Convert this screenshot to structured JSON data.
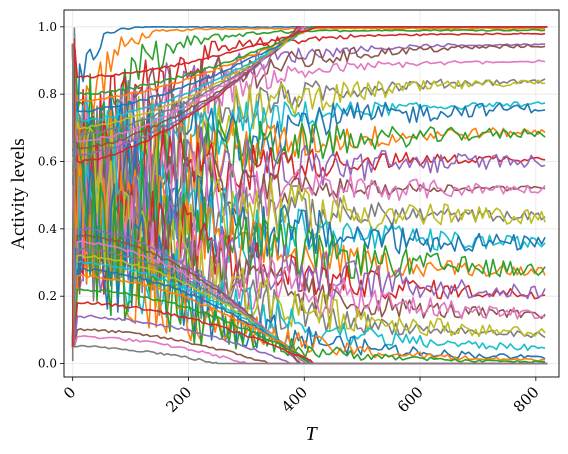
{
  "chart_data": {
    "type": "line",
    "xlabel": "T",
    "ylabel": "Activity levels",
    "xlim": [
      -15,
      840
    ],
    "ylim": [
      -0.04,
      1.05
    ],
    "xticks": [
      0,
      200,
      400,
      600,
      800
    ],
    "xtick_labels": [
      "0",
      "200",
      "400",
      "600",
      "800"
    ],
    "yticks": [
      0.0,
      0.2,
      0.4,
      0.6,
      0.8,
      1.0
    ],
    "ytick_labels": [
      "0.0",
      "0.2",
      "0.4",
      "0.6",
      "0.8",
      "1.0"
    ],
    "grid": true,
    "legend": "none",
    "x_max": 820,
    "colors": [
      "#1f77b4",
      "#ff7f0e",
      "#2ca02c",
      "#d62728",
      "#9467bd",
      "#8c564b",
      "#e377c2",
      "#7f7f7f",
      "#bcbd22",
      "#17becf"
    ],
    "plateau_series": [
      {
        "final": 1.0,
        "rise": 20
      },
      {
        "final": 0.995,
        "rise": 40
      },
      {
        "final": 0.99,
        "rise": 80
      },
      {
        "final": 0.98,
        "rise": 120
      },
      {
        "final": 0.95,
        "rise": 150
      },
      {
        "final": 0.948,
        "rise": 180
      },
      {
        "final": 0.9,
        "rise": 160
      },
      {
        "final": 0.845,
        "rise": 200
      },
      {
        "final": 0.843,
        "rise": 220
      },
      {
        "final": 0.775,
        "rise": 200
      },
      {
        "final": 0.772,
        "rise": 260
      },
      {
        "final": 0.695,
        "rise": 240
      },
      {
        "final": 0.692,
        "rise": 250
      },
      {
        "final": 0.612,
        "rise": 220
      },
      {
        "final": 0.608,
        "rise": 280
      },
      {
        "final": 0.522,
        "rise": 200
      },
      {
        "final": 0.52,
        "rise": 260
      },
      {
        "final": 0.435,
        "rise": 250
      },
      {
        "final": 0.432,
        "rise": 300
      },
      {
        "final": 0.35,
        "rise": 280
      },
      {
        "final": 0.346,
        "rise": 300
      },
      {
        "final": 0.265,
        "rise": 260
      },
      {
        "final": 0.262,
        "rise": 300
      },
      {
        "final": 0.192,
        "rise": 260
      },
      {
        "final": 0.19,
        "rise": 300
      },
      {
        "final": 0.128,
        "rise": 250
      },
      {
        "final": 0.125,
        "rise": 280
      },
      {
        "final": 0.075,
        "rise": 220
      },
      {
        "final": 0.072,
        "rise": 260
      },
      {
        "final": 0.035,
        "rise": 220
      },
      {
        "final": 0.01,
        "rise": 200
      },
      {
        "final": 0.005,
        "rise": 180
      },
      {
        "final": 0.002,
        "rise": 160
      }
    ],
    "rising_series": [
      {
        "start": 0.6,
        "t_end": 390
      },
      {
        "start": 0.62,
        "t_end": 395
      },
      {
        "start": 0.64,
        "t_end": 400
      },
      {
        "start": 0.66,
        "t_end": 402
      },
      {
        "start": 0.68,
        "t_end": 405
      },
      {
        "start": 0.7,
        "t_end": 408
      },
      {
        "start": 0.72,
        "t_end": 410
      },
      {
        "start": 0.75,
        "t_end": 412
      },
      {
        "start": 0.78,
        "t_end": 415
      },
      {
        "start": 0.8,
        "t_end": 418
      },
      {
        "start": 0.85,
        "t_end": 420
      }
    ],
    "falling_series": [
      {
        "start": 0.4,
        "t_end": 390
      },
      {
        "start": 0.38,
        "t_end": 395
      },
      {
        "start": 0.36,
        "t_end": 400
      },
      {
        "start": 0.34,
        "t_end": 403
      },
      {
        "start": 0.32,
        "t_end": 406
      },
      {
        "start": 0.3,
        "t_end": 410
      },
      {
        "start": 0.28,
        "t_end": 412
      },
      {
        "start": 0.26,
        "t_end": 415
      },
      {
        "start": 0.22,
        "t_end": 418
      },
      {
        "start": 0.18,
        "t_end": 420
      },
      {
        "start": 0.14,
        "t_end": 380
      },
      {
        "start": 0.1,
        "t_end": 340
      },
      {
        "start": 0.08,
        "t_end": 300
      },
      {
        "start": 0.05,
        "t_end": 250
      }
    ]
  }
}
